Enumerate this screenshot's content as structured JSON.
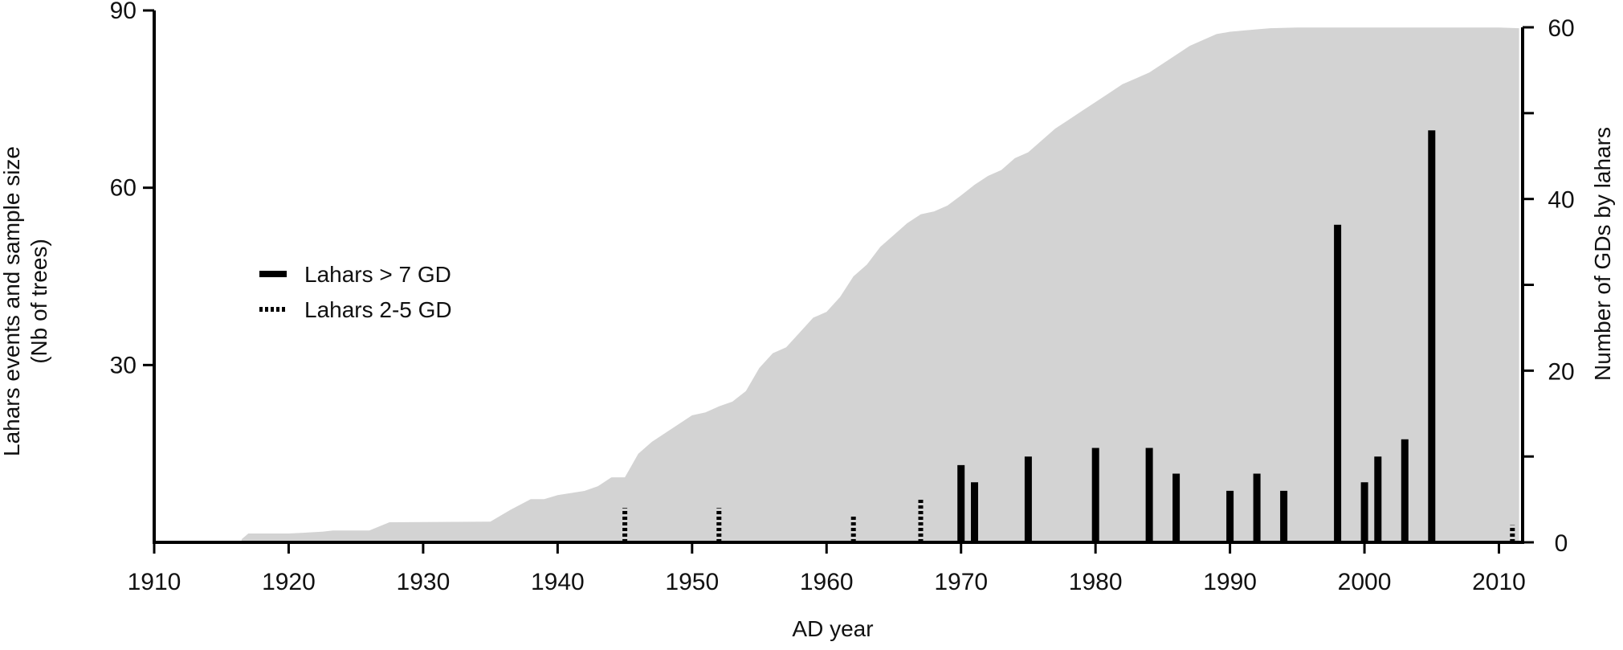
{
  "chart_data": {
    "type": "bar",
    "title": "",
    "xlabel": "AD year",
    "ylabel_left": "Lahars events and sample size (Nb of trees)",
    "ylabel_left_lines": [
      "Lahars events and sample size",
      "(Nb of trees)"
    ],
    "ylabel_right": "Number of GDs by lahars",
    "xlim": [
      1910,
      2012
    ],
    "ylim_left": [
      0,
      90
    ],
    "ylim_right": [
      0,
      60
    ],
    "x_ticks": [
      1910,
      1920,
      1930,
      1940,
      1950,
      1960,
      1970,
      1980,
      1990,
      2000,
      2010
    ],
    "y_left_ticks": [
      30,
      60,
      90
    ],
    "y_right_ticks": [
      0,
      20,
      40,
      60
    ],
    "grid": false,
    "legend_position": "left",
    "colors": {
      "sample_area": "#d3d3d3",
      "bars": "#000000",
      "axis": "#000000"
    },
    "series": [
      {
        "name": "",
        "kind": "area",
        "axis": "left",
        "x": [
          1916.5,
          1917,
          1920,
          1922.5,
          1923.3,
          1926,
          1927.5,
          1935,
          1936.5,
          1938,
          1939,
          1940,
          1942,
          1943,
          1944,
          1945,
          1946,
          1947,
          1950,
          1951,
          1952,
          1953,
          1954,
          1955,
          1956,
          1957,
          1958,
          1959,
          1960,
          1961,
          1962,
          1963,
          1964,
          1965,
          1966,
          1967,
          1968,
          1969,
          1970,
          1971,
          1972,
          1973,
          1974,
          1975,
          1976,
          1977,
          1978,
          1979,
          1980,
          1981,
          1982,
          1983,
          1984,
          1985,
          1986,
          1987,
          1988,
          1989,
          1990,
          1991,
          1992,
          1993,
          1995,
          2000,
          2005,
          2010,
          2011.5
        ],
        "y": [
          0.5,
          1.5,
          1.5,
          1.8,
          2.0,
          2.0,
          3.4,
          3.5,
          5.5,
          7.3,
          7.3,
          8.0,
          8.7,
          9.5,
          11.0,
          11.0,
          15.0,
          17.0,
          21.5,
          22.0,
          23.0,
          23.8,
          25.6,
          29.5,
          32.0,
          33.0,
          35.5,
          38.0,
          39.0,
          41.5,
          45.0,
          47.0,
          50.0,
          52.0,
          54.0,
          55.5,
          56.0,
          57.0,
          58.7,
          60.5,
          62.0,
          63.0,
          65.0,
          66.0,
          68.0,
          70.0,
          71.5,
          73.0,
          74.5,
          76.0,
          77.5,
          78.5,
          79.5,
          81.0,
          82.5,
          84.0,
          85.0,
          86.0,
          86.4,
          86.6,
          86.8,
          87.0,
          87.1,
          87.1,
          87.1,
          87.1,
          87.0
        ]
      },
      {
        "name": "Lahars > 7 GD",
        "kind": "bar",
        "axis": "right",
        "line_style": "solid",
        "x": [
          1970,
          1971,
          1975,
          1980,
          1984,
          1986,
          1990,
          1992,
          1994,
          1998,
          2000,
          2001,
          2003,
          2005
        ],
        "y": [
          9,
          7,
          10,
          11,
          11,
          8,
          6,
          8,
          6,
          37,
          7,
          10,
          12,
          48
        ]
      },
      {
        "name": "Lahars 2-5 GD",
        "kind": "bar",
        "axis": "right",
        "line_style": "dotted",
        "x": [
          1945,
          1952,
          1962,
          1967,
          2011
        ],
        "y": [
          4,
          4,
          3,
          5,
          2
        ]
      }
    ]
  }
}
